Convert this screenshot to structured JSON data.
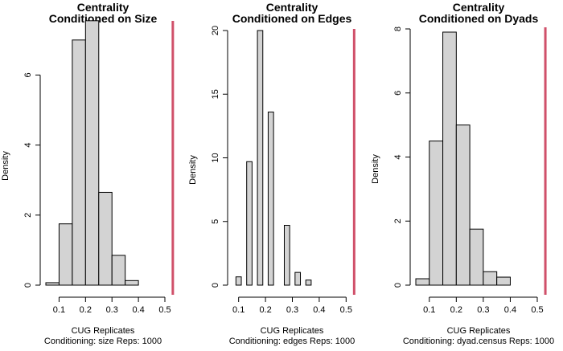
{
  "chart_data": [
    {
      "type": "histogram",
      "title": "Centrality",
      "subtitle": "Conditioned on Size",
      "ylabel": "Density",
      "xlabel": "CUG Replicates",
      "caption": "Conditioning: size Reps: 1000",
      "xlim": [
        0.05,
        0.5
      ],
      "ylim": [
        0,
        7.5
      ],
      "xticks": [
        "0.1",
        "0.2",
        "0.3",
        "0.4",
        "0.5"
      ],
      "xtick_values": [
        0.1,
        0.2,
        0.3,
        0.4,
        0.5
      ],
      "yticks": [
        "0",
        "2",
        "4",
        "6"
      ],
      "ytick_values": [
        0,
        2,
        4,
        6
      ],
      "bins": [
        {
          "x0": 0.05,
          "x1": 0.1,
          "density": 0.07
        },
        {
          "x0": 0.1,
          "x1": 0.15,
          "density": 1.75
        },
        {
          "x0": 0.15,
          "x1": 0.2,
          "density": 7.0
        },
        {
          "x0": 0.2,
          "x1": 0.25,
          "density": 7.55
        },
        {
          "x0": 0.25,
          "x1": 0.3,
          "density": 2.65
        },
        {
          "x0": 0.3,
          "x1": 0.35,
          "density": 0.85
        },
        {
          "x0": 0.35,
          "x1": 0.4,
          "density": 0.13
        }
      ],
      "observed": 0.53,
      "observed_color": "#d0506a"
    },
    {
      "type": "histogram",
      "title": "Centrality",
      "subtitle": "Conditioned on Edges",
      "ylabel": "Density",
      "xlabel": "CUG Replicates",
      "caption": "Conditioning: edges Reps: 1000",
      "xlim": [
        0.08,
        0.52
      ],
      "ylim": [
        0,
        20
      ],
      "xticks": [
        "0.1",
        "0.2",
        "0.3",
        "0.4",
        "0.5"
      ],
      "xtick_values": [
        0.1,
        0.2,
        0.3,
        0.4,
        0.5
      ],
      "yticks": [
        "0",
        "5",
        "10",
        "15",
        "20"
      ],
      "ytick_values": [
        0,
        5,
        10,
        15,
        20
      ],
      "bins": [
        {
          "x0": 0.09,
          "x1": 0.11,
          "density": 0.65
        },
        {
          "x0": 0.11,
          "x1": 0.13,
          "density": 0.0
        },
        {
          "x0": 0.13,
          "x1": 0.15,
          "density": 9.7
        },
        {
          "x0": 0.15,
          "x1": 0.17,
          "density": 0.0
        },
        {
          "x0": 0.17,
          "x1": 0.19,
          "density": 20.0
        },
        {
          "x0": 0.19,
          "x1": 0.21,
          "density": 0.0
        },
        {
          "x0": 0.21,
          "x1": 0.23,
          "density": 13.6
        },
        {
          "x0": 0.23,
          "x1": 0.25,
          "density": 0.0
        },
        {
          "x0": 0.25,
          "x1": 0.27,
          "density": 0.0
        },
        {
          "x0": 0.27,
          "x1": 0.29,
          "density": 4.7
        },
        {
          "x0": 0.29,
          "x1": 0.31,
          "density": 0.0
        },
        {
          "x0": 0.31,
          "x1": 0.33,
          "density": 1.0
        },
        {
          "x0": 0.33,
          "x1": 0.35,
          "density": 0.0
        },
        {
          "x0": 0.35,
          "x1": 0.37,
          "density": 0.4
        }
      ],
      "observed": 0.53,
      "observed_color": "#d0506a"
    },
    {
      "type": "histogram",
      "title": "Centrality",
      "subtitle": "Conditioned on Dyads",
      "ylabel": "Density",
      "xlabel": "CUG Replicates",
      "caption": "Conditioning: dyad.census Reps: 1000",
      "xlim": [
        0.05,
        0.5
      ],
      "ylim": [
        0,
        8
      ],
      "xticks": [
        "0.1",
        "0.2",
        "0.3",
        "0.4",
        "0.5"
      ],
      "xtick_values": [
        0.1,
        0.2,
        0.3,
        0.4,
        0.5
      ],
      "yticks": [
        "0",
        "2",
        "4",
        "6",
        "8"
      ],
      "ytick_values": [
        0,
        2,
        4,
        6,
        8
      ],
      "bins": [
        {
          "x0": 0.05,
          "x1": 0.1,
          "density": 0.2
        },
        {
          "x0": 0.1,
          "x1": 0.15,
          "density": 4.5
        },
        {
          "x0": 0.15,
          "x1": 0.2,
          "density": 7.9
        },
        {
          "x0": 0.2,
          "x1": 0.25,
          "density": 5.0
        },
        {
          "x0": 0.25,
          "x1": 0.3,
          "density": 1.75
        },
        {
          "x0": 0.3,
          "x1": 0.35,
          "density": 0.42
        },
        {
          "x0": 0.35,
          "x1": 0.4,
          "density": 0.25
        }
      ],
      "observed": 0.53,
      "observed_color": "#d0506a"
    }
  ]
}
